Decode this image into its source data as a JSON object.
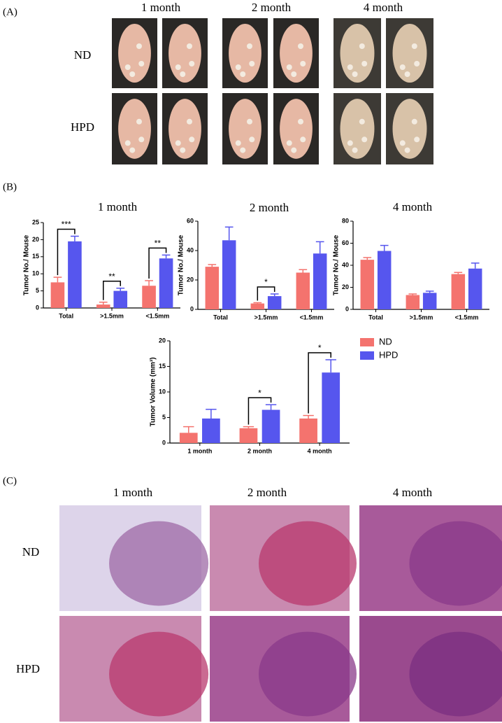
{
  "panels": {
    "A": {
      "label": "(A)",
      "columns": [
        "1 month",
        "2 month",
        "4 month"
      ],
      "rows": [
        "ND",
        "HPD"
      ]
    },
    "B": {
      "label": "(B)"
    },
    "C": {
      "label": "(C)",
      "columns": [
        "1 month",
        "2 month",
        "4 month"
      ],
      "rows": [
        "ND",
        "HPD"
      ]
    }
  },
  "chart_data": [
    {
      "type": "bar",
      "title": "1 month",
      "y_label": "Tumor No./ Mouse",
      "categories": [
        "Total",
        ">1.5mm",
        "<1.5mm"
      ],
      "series": [
        {
          "color": "#f4736e",
          "values": [
            7.5,
            1,
            6.5
          ],
          "errors": [
            1.5,
            0.7,
            1.5
          ]
        },
        {
          "color": "#5656ee",
          "values": [
            19.5,
            5,
            14.5
          ],
          "errors": [
            1.5,
            0.8,
            1
          ]
        }
      ],
      "annotations": [
        "***",
        "**",
        "**"
      ],
      "ylim": [
        0,
        25
      ],
      "yticks": [
        0,
        5,
        10,
        15,
        20,
        25
      ]
    },
    {
      "type": "bar",
      "title": "2 month",
      "y_label": "Tumor No./ Mouse",
      "categories": [
        "Total",
        ">1.5mm",
        "<1.5mm"
      ],
      "series": [
        {
          "color": "#f4736e",
          "values": [
            29,
            4,
            25
          ],
          "errors": [
            1.5,
            0.5,
            2
          ]
        },
        {
          "color": "#5656ee",
          "values": [
            47,
            9,
            38
          ],
          "errors": [
            9,
            1.5,
            8
          ]
        }
      ],
      "annotations": [
        null,
        "*",
        null
      ],
      "ylim": [
        0,
        60
      ],
      "yticks": [
        0,
        20,
        40,
        60
      ]
    },
    {
      "type": "bar",
      "title": "4 month",
      "y_label": "Tumor No./ Mouse",
      "categories": [
        "Total",
        ">1.5mm",
        "<1.5mm"
      ],
      "series": [
        {
          "color": "#f4736e",
          "values": [
            45,
            13,
            32
          ],
          "errors": [
            2,
            1,
            1.5
          ]
        },
        {
          "color": "#5656ee",
          "values": [
            53,
            15,
            37
          ],
          "errors": [
            5,
            1.5,
            5
          ]
        }
      ],
      "ylim": [
        0,
        80
      ],
      "yticks": [
        0,
        20,
        40,
        60,
        80
      ]
    },
    {
      "type": "bar",
      "y_label": "Tumor Volume (mm³)",
      "categories": [
        "1 month",
        "2 month",
        "4 month"
      ],
      "series": [
        {
          "name": "ND",
          "color": "#f4736e",
          "values": [
            2,
            2.9,
            4.8
          ],
          "errors": [
            1.2,
            0.3,
            0.6
          ]
        },
        {
          "name": "HPD",
          "color": "#5656ee",
          "values": [
            4.8,
            6.5,
            13.8
          ],
          "errors": [
            1.8,
            1,
            2.5
          ]
        }
      ],
      "annotations": [
        null,
        "*",
        "*"
      ],
      "legend": "right",
      "ylim": [
        0,
        20
      ],
      "yticks": [
        0,
        5,
        10,
        15,
        20
      ]
    }
  ]
}
